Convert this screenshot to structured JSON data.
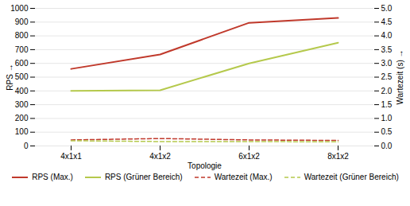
{
  "chart_data": {
    "type": "line",
    "categories": [
      "4x1x1",
      "4x1x2",
      "6x1x2",
      "8x1x2"
    ],
    "series": [
      {
        "name": "RPS (Max.)",
        "color": "#c0392b",
        "line_style": "solid",
        "values": [
          560,
          665,
          895,
          930
        ]
      },
      {
        "name": "RPS (Grüner Bereich)",
        "color": "#b5c94c",
        "line_style": "solid",
        "values": [
          400,
          405,
          600,
          750
        ]
      },
      {
        "name": "Wartezeit (Max.)",
        "color": "#c0392b",
        "line_style": "dashed",
        "axis": "y2",
        "values": [
          0.22,
          0.27,
          0.22,
          0.2
        ]
      },
      {
        "name": "Wartezeit (Grüner Bereich)",
        "color": "#b5c94c",
        "line_style": "dashed",
        "axis": "y2",
        "values": [
          0.19,
          0.16,
          0.16,
          0.15
        ]
      }
    ],
    "xlabel": "Topologie",
    "ylabel": "RPS",
    "y2label": "Wartezeit (s)",
    "ylim": [
      0,
      1000
    ],
    "yticks": [
      0,
      100,
      200,
      300,
      400,
      500,
      600,
      700,
      800,
      900,
      1000
    ],
    "y2lim": [
      0,
      5
    ],
    "y2ticks": [
      {
        "value": 0,
        "label": "0.0"
      },
      0.5,
      {
        "value": 1,
        "label": "1.0"
      },
      1.5,
      {
        "value": 2,
        "label": "2.0"
      },
      2.5,
      {
        "value": 3,
        "label": "3.0"
      },
      3.5,
      {
        "value": 4,
        "label": "4.0"
      },
      4.5,
      {
        "value": 5,
        "label": "5.0"
      }
    ],
    "grid": true,
    "legend": "bottom"
  }
}
